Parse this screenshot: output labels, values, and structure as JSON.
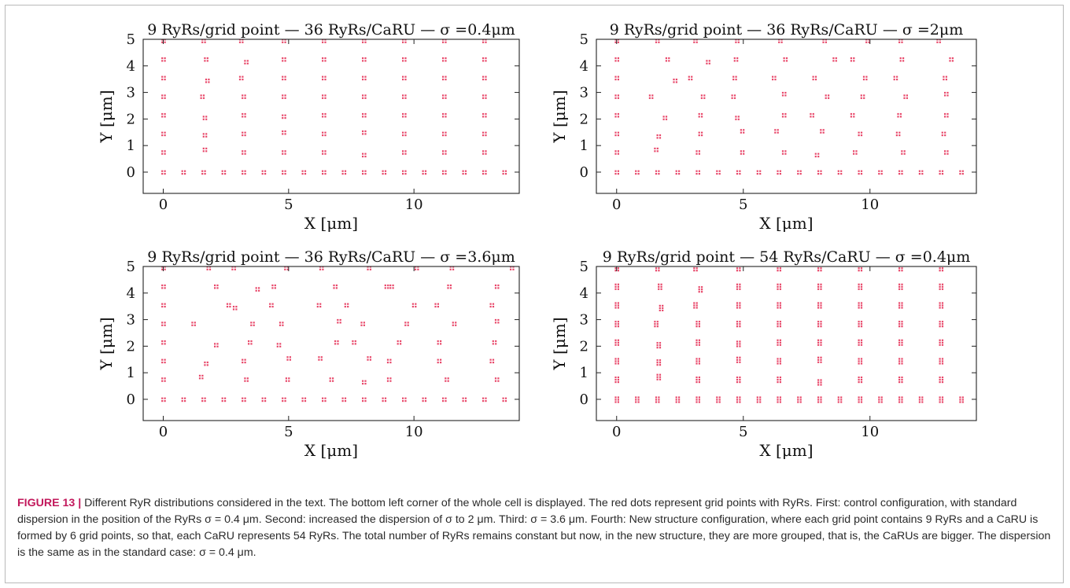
{
  "figure": {
    "label": "FIGURE 13 |",
    "caption": " Different RyR distributions considered in the text. The bottom left corner of the whole cell is displayed. The red dots represent grid points with RyRs. First: control configuration, with standard dispersion in the position of the RyRs σ = 0.4 μm. Second: increased the dispersion of σ to 2 μm. Third: σ = 3.6 μm. Fourth: New structure configuration, where each grid point contains 9 RyRs and a CaRU is formed by 6 grid points, so that, each CaRU represents 54 RyRs. The total number of RyRs remains constant but now, in the new structure, they are more grouped, that is, the CaRUs are bigger. The dispersion is the same as in the standard case: σ = 0.4 μm."
  },
  "colors": {
    "marker": "#e8486a",
    "axes": "#222222"
  },
  "chart_data": [
    {
      "type": "scatter",
      "title": "9 RyRs/grid point — 36 RyRs/CaRU — σ =0.4μm",
      "xlabel": "X [μm]",
      "ylabel": "Y [μm]",
      "xlim": [
        -0.8,
        14.2
      ],
      "ylim": [
        -0.8,
        5
      ],
      "xticks": [
        0,
        5,
        10
      ],
      "yticks": [
        0,
        1,
        2,
        3,
        4,
        5
      ],
      "grid": false,
      "marker": "cluster-4",
      "points": [
        [
          0,
          0
        ],
        [
          0.8,
          0
        ],
        [
          1.6,
          0
        ],
        [
          2.4,
          0
        ],
        [
          3.2,
          0
        ],
        [
          4,
          0
        ],
        [
          4.8,
          0
        ],
        [
          5.6,
          0
        ],
        [
          6.4,
          0
        ],
        [
          7.2,
          0
        ],
        [
          8,
          0
        ],
        [
          8.8,
          0
        ],
        [
          9.6,
          0
        ],
        [
          10.4,
          0
        ],
        [
          11.2,
          0
        ],
        [
          12,
          0
        ],
        [
          12.8,
          0
        ],
        [
          13.6,
          0
        ],
        [
          0,
          0.75
        ],
        [
          0,
          1.45
        ],
        [
          0,
          2.15
        ],
        [
          0,
          2.85
        ],
        [
          0,
          3.55
        ],
        [
          0,
          4.25
        ],
        [
          0,
          4.95
        ],
        [
          1.65,
          0.85
        ],
        [
          1.65,
          1.4
        ],
        [
          1.65,
          2.05
        ],
        [
          1.55,
          2.85
        ],
        [
          1.75,
          3.45
        ],
        [
          1.7,
          4.25
        ],
        [
          1.6,
          4.95
        ],
        [
          3.2,
          0.75
        ],
        [
          3.2,
          1.45
        ],
        [
          3.2,
          2.15
        ],
        [
          3.2,
          2.85
        ],
        [
          3.1,
          3.55
        ],
        [
          3.3,
          4.15
        ],
        [
          3.1,
          4.95
        ],
        [
          4.8,
          0.75
        ],
        [
          4.8,
          1.5
        ],
        [
          4.8,
          2.1
        ],
        [
          4.8,
          2.85
        ],
        [
          4.8,
          3.55
        ],
        [
          4.8,
          4.25
        ],
        [
          4.8,
          4.95
        ],
        [
          6.4,
          0.75
        ],
        [
          6.4,
          1.45
        ],
        [
          6.4,
          2.15
        ],
        [
          6.4,
          2.85
        ],
        [
          6.4,
          3.55
        ],
        [
          6.4,
          4.25
        ],
        [
          6.4,
          4.95
        ],
        [
          8,
          0.65
        ],
        [
          8,
          1.5
        ],
        [
          8,
          2.15
        ],
        [
          8,
          2.85
        ],
        [
          8,
          3.55
        ],
        [
          8,
          4.25
        ],
        [
          8,
          4.95
        ],
        [
          9.6,
          0.75
        ],
        [
          9.6,
          1.45
        ],
        [
          9.6,
          2.15
        ],
        [
          9.6,
          2.85
        ],
        [
          9.6,
          3.55
        ],
        [
          9.6,
          4.25
        ],
        [
          9.6,
          4.95
        ],
        [
          11.2,
          0.75
        ],
        [
          11.2,
          1.45
        ],
        [
          11.2,
          2.15
        ],
        [
          11.2,
          2.85
        ],
        [
          11.2,
          3.55
        ],
        [
          11.2,
          4.25
        ],
        [
          11.2,
          4.95
        ],
        [
          12.8,
          0.75
        ],
        [
          12.8,
          1.45
        ],
        [
          12.8,
          2.15
        ],
        [
          12.8,
          2.85
        ],
        [
          12.8,
          3.55
        ],
        [
          12.8,
          4.25
        ],
        [
          12.8,
          4.95
        ]
      ]
    },
    {
      "type": "scatter",
      "title": "9 RyRs/grid point — 36 RyRs/CaRU — σ =2μm",
      "xlabel": "X [μm]",
      "ylabel": "Y [μm]",
      "xlim": [
        -0.8,
        14.2
      ],
      "ylim": [
        -0.8,
        5
      ],
      "xticks": [
        0,
        5,
        10
      ],
      "yticks": [
        0,
        1,
        2,
        3,
        4,
        5
      ],
      "grid": false,
      "marker": "cluster-4",
      "points": [
        [
          0,
          0
        ],
        [
          0.8,
          0
        ],
        [
          1.6,
          0
        ],
        [
          2.4,
          0
        ],
        [
          3.2,
          0
        ],
        [
          4,
          0
        ],
        [
          4.8,
          0
        ],
        [
          5.6,
          0
        ],
        [
          6.4,
          0
        ],
        [
          7.2,
          0
        ],
        [
          8,
          0
        ],
        [
          8.8,
          0
        ],
        [
          9.6,
          0
        ],
        [
          10.4,
          0
        ],
        [
          11.2,
          0
        ],
        [
          12,
          0
        ],
        [
          12.8,
          0
        ],
        [
          13.6,
          0
        ],
        [
          0,
          0.75
        ],
        [
          0,
          1.45
        ],
        [
          0,
          2.15
        ],
        [
          0,
          2.85
        ],
        [
          0,
          3.55
        ],
        [
          0,
          4.25
        ],
        [
          0,
          4.95
        ],
        [
          1.55,
          0.85
        ],
        [
          1.65,
          1.35
        ],
        [
          1.9,
          2.05
        ],
        [
          1.35,
          2.85
        ],
        [
          2.3,
          3.45
        ],
        [
          2.0,
          4.25
        ],
        [
          1.6,
          4.95
        ],
        [
          3.2,
          0.75
        ],
        [
          3.3,
          1.45
        ],
        [
          3.3,
          2.15
        ],
        [
          3.4,
          2.85
        ],
        [
          2.9,
          3.55
        ],
        [
          3.6,
          4.15
        ],
        [
          3.1,
          4.95
        ],
        [
          4.95,
          0.75
        ],
        [
          4.95,
          1.55
        ],
        [
          4.75,
          2.05
        ],
        [
          4.6,
          2.85
        ],
        [
          4.65,
          3.55
        ],
        [
          4.7,
          4.25
        ],
        [
          4.75,
          4.95
        ],
        [
          6.6,
          0.75
        ],
        [
          6.3,
          1.55
        ],
        [
          6.6,
          2.15
        ],
        [
          6.6,
          2.95
        ],
        [
          6.2,
          3.55
        ],
        [
          6.65,
          4.25
        ],
        [
          6.45,
          4.95
        ],
        [
          7.9,
          0.65
        ],
        [
          8.1,
          1.55
        ],
        [
          7.7,
          2.15
        ],
        [
          8.3,
          2.85
        ],
        [
          7.8,
          3.55
        ],
        [
          8.6,
          4.25
        ],
        [
          8.2,
          4.95
        ],
        [
          9.4,
          0.75
        ],
        [
          9.6,
          1.45
        ],
        [
          9.3,
          2.15
        ],
        [
          9.7,
          2.85
        ],
        [
          9.8,
          3.55
        ],
        [
          9.3,
          4.25
        ],
        [
          9.9,
          4.95
        ],
        [
          11.3,
          0.75
        ],
        [
          11.1,
          1.45
        ],
        [
          11.15,
          2.15
        ],
        [
          11.4,
          2.85
        ],
        [
          11.0,
          3.55
        ],
        [
          11.25,
          4.25
        ],
        [
          11.2,
          4.95
        ],
        [
          13.0,
          0.75
        ],
        [
          12.9,
          1.45
        ],
        [
          13.0,
          2.15
        ],
        [
          13.0,
          2.95
        ],
        [
          12.95,
          3.55
        ],
        [
          13.2,
          4.25
        ],
        [
          12.7,
          4.95
        ]
      ]
    },
    {
      "type": "scatter",
      "title": "9 RyRs/grid point — 36 RyRs/CaRU — σ =3.6μm",
      "xlabel": "X [μm]",
      "ylabel": "Y [μm]",
      "xlim": [
        -0.8,
        14.2
      ],
      "ylim": [
        -0.8,
        5
      ],
      "xticks": [
        0,
        5,
        10
      ],
      "yticks": [
        0,
        1,
        2,
        3,
        4,
        5
      ],
      "grid": false,
      "marker": "cluster-4",
      "points": [
        [
          0,
          0
        ],
        [
          0.8,
          0
        ],
        [
          1.6,
          0
        ],
        [
          2.4,
          0
        ],
        [
          3.2,
          0
        ],
        [
          4,
          0
        ],
        [
          4.8,
          0
        ],
        [
          5.6,
          0
        ],
        [
          6.4,
          0
        ],
        [
          7.2,
          0
        ],
        [
          8,
          0
        ],
        [
          8.8,
          0
        ],
        [
          9.6,
          0
        ],
        [
          10.4,
          0
        ],
        [
          11.2,
          0
        ],
        [
          12,
          0
        ],
        [
          12.8,
          0
        ],
        [
          13.6,
          0
        ],
        [
          0,
          0.75
        ],
        [
          0,
          1.45
        ],
        [
          0,
          2.15
        ],
        [
          0,
          2.85
        ],
        [
          0,
          3.55
        ],
        [
          0,
          4.25
        ],
        [
          0,
          4.95
        ],
        [
          1.5,
          0.85
        ],
        [
          1.7,
          1.35
        ],
        [
          2.1,
          2.05
        ],
        [
          1.2,
          2.85
        ],
        [
          2.6,
          3.55
        ],
        [
          2.1,
          4.25
        ],
        [
          1.8,
          4.95
        ],
        [
          3.3,
          0.75
        ],
        [
          3.2,
          1.45
        ],
        [
          3.45,
          2.15
        ],
        [
          3.55,
          2.85
        ],
        [
          2.85,
          3.45
        ],
        [
          3.75,
          4.15
        ],
        [
          2.8,
          4.95
        ],
        [
          4.95,
          0.75
        ],
        [
          5.0,
          1.55
        ],
        [
          4.6,
          2.05
        ],
        [
          4.7,
          2.85
        ],
        [
          4.3,
          3.55
        ],
        [
          4.4,
          4.25
        ],
        [
          4.9,
          4.95
        ],
        [
          6.7,
          0.75
        ],
        [
          6.25,
          1.55
        ],
        [
          6.9,
          2.15
        ],
        [
          7.0,
          2.95
        ],
        [
          6.2,
          3.55
        ],
        [
          6.85,
          4.25
        ],
        [
          6.3,
          4.95
        ],
        [
          8.0,
          0.65
        ],
        [
          8.2,
          1.55
        ],
        [
          7.6,
          2.15
        ],
        [
          7.95,
          2.85
        ],
        [
          7.3,
          3.55
        ],
        [
          8.9,
          4.25
        ],
        [
          8.2,
          4.95
        ],
        [
          9.0,
          0.75
        ],
        [
          9.0,
          1.45
        ],
        [
          9.4,
          2.15
        ],
        [
          9.7,
          2.85
        ],
        [
          10.0,
          3.55
        ],
        [
          9.1,
          4.25
        ],
        [
          10.1,
          4.95
        ],
        [
          11.3,
          0.75
        ],
        [
          11.0,
          1.45
        ],
        [
          11.0,
          2.15
        ],
        [
          11.6,
          2.85
        ],
        [
          10.9,
          3.55
        ],
        [
          11.4,
          4.25
        ],
        [
          11.5,
          4.95
        ],
        [
          13.3,
          0.75
        ],
        [
          13.1,
          1.45
        ],
        [
          13.2,
          2.15
        ],
        [
          13.3,
          2.95
        ],
        [
          13.1,
          3.55
        ],
        [
          13.3,
          4.25
        ],
        [
          13.9,
          4.95
        ]
      ]
    },
    {
      "type": "scatter",
      "title": "9 RyRs/grid point — 54 RyRs/CaRU — σ =0.4μm",
      "xlabel": "X [μm]",
      "ylabel": "Y [μm]",
      "xlim": [
        -0.8,
        14.2
      ],
      "ylim": [
        -0.8,
        5
      ],
      "xticks": [
        0,
        5,
        10
      ],
      "yticks": [
        0,
        1,
        2,
        3,
        4,
        5
      ],
      "grid": false,
      "marker": "cluster-6",
      "points": [
        [
          0,
          0
        ],
        [
          0.8,
          0
        ],
        [
          1.6,
          0
        ],
        [
          2.4,
          0
        ],
        [
          3.2,
          0
        ],
        [
          4,
          0
        ],
        [
          4.8,
          0
        ],
        [
          5.6,
          0
        ],
        [
          6.4,
          0
        ],
        [
          7.2,
          0
        ],
        [
          8,
          0
        ],
        [
          8.8,
          0
        ],
        [
          9.6,
          0
        ],
        [
          10.4,
          0
        ],
        [
          11.2,
          0
        ],
        [
          12,
          0
        ],
        [
          12.8,
          0
        ],
        [
          13.6,
          0
        ],
        [
          0,
          0.75
        ],
        [
          0,
          1.45
        ],
        [
          0,
          2.15
        ],
        [
          0,
          2.85
        ],
        [
          0,
          3.55
        ],
        [
          0,
          4.25
        ],
        [
          0,
          4.95
        ],
        [
          1.65,
          0.85
        ],
        [
          1.65,
          1.4
        ],
        [
          1.65,
          2.05
        ],
        [
          1.55,
          2.85
        ],
        [
          1.75,
          3.45
        ],
        [
          1.7,
          4.25
        ],
        [
          1.6,
          4.95
        ],
        [
          3.2,
          0.75
        ],
        [
          3.2,
          1.45
        ],
        [
          3.2,
          2.15
        ],
        [
          3.2,
          2.85
        ],
        [
          3.1,
          3.55
        ],
        [
          3.3,
          4.15
        ],
        [
          3.1,
          4.95
        ],
        [
          4.8,
          0.75
        ],
        [
          4.8,
          1.5
        ],
        [
          4.8,
          2.1
        ],
        [
          4.8,
          2.85
        ],
        [
          4.8,
          3.55
        ],
        [
          4.8,
          4.25
        ],
        [
          4.8,
          4.95
        ],
        [
          6.4,
          0.75
        ],
        [
          6.4,
          1.45
        ],
        [
          6.4,
          2.15
        ],
        [
          6.4,
          2.85
        ],
        [
          6.4,
          3.55
        ],
        [
          6.4,
          4.25
        ],
        [
          6.4,
          4.95
        ],
        [
          8,
          0.65
        ],
        [
          8,
          1.5
        ],
        [
          8,
          2.15
        ],
        [
          8,
          2.85
        ],
        [
          8,
          3.55
        ],
        [
          8,
          4.25
        ],
        [
          8,
          4.95
        ],
        [
          9.6,
          0.75
        ],
        [
          9.6,
          1.45
        ],
        [
          9.6,
          2.15
        ],
        [
          9.6,
          2.85
        ],
        [
          9.6,
          3.55
        ],
        [
          9.6,
          4.25
        ],
        [
          9.6,
          4.95
        ],
        [
          11.2,
          0.75
        ],
        [
          11.2,
          1.45
        ],
        [
          11.2,
          2.15
        ],
        [
          11.2,
          2.85
        ],
        [
          11.2,
          3.55
        ],
        [
          11.2,
          4.25
        ],
        [
          11.2,
          4.95
        ],
        [
          12.8,
          0.75
        ],
        [
          12.8,
          1.45
        ],
        [
          12.8,
          2.15
        ],
        [
          12.8,
          2.85
        ],
        [
          12.8,
          3.55
        ],
        [
          12.8,
          4.25
        ],
        [
          12.8,
          4.95
        ]
      ]
    }
  ]
}
